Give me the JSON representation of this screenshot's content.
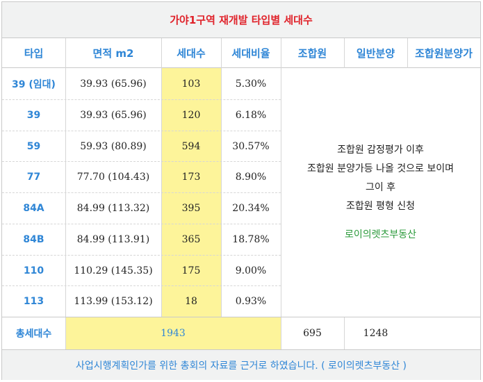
{
  "title": "가야1구역 재개발 타입별 세대수",
  "headers": [
    "타입",
    "면적 m2",
    "세대수",
    "세대비율",
    "조합원",
    "일반분양",
    "조합원분양가"
  ],
  "rows": [
    {
      "type": "39 (임대)",
      "area": "39.93 (65.96)",
      "units": "103",
      "ratio": "5.30%"
    },
    {
      "type": "39",
      "area": "39.93 (65.96)",
      "units": "120",
      "ratio": "6.18%"
    },
    {
      "type": "59",
      "area": "59.93 (80.89)",
      "units": "594",
      "ratio": "30.57%"
    },
    {
      "type": "77",
      "area": "77.70 (104.43)",
      "units": "173",
      "ratio": "8.90%"
    },
    {
      "type": "84A",
      "area": "84.99 (113.32)",
      "units": "395",
      "ratio": "20.34%"
    },
    {
      "type": "84B",
      "area": "84.99 (113.91)",
      "units": "365",
      "ratio": "18.78%"
    },
    {
      "type": "110",
      "area": "110.29 (145.35)",
      "units": "175",
      "ratio": "9.00%"
    },
    {
      "type": "113",
      "area": "113.99 (153.12)",
      "units": "18",
      "ratio": "0.93%"
    }
  ],
  "note": {
    "lines": [
      "조합원 감정평가 이후",
      "조합원 분양가등 나올 것으로 보이며",
      "그이 후",
      "조합원 평형 신청"
    ],
    "agency": "로이의렛츠부동산"
  },
  "total": {
    "label": "총세대수",
    "units": "1943",
    "members": "695",
    "general": "1248"
  },
  "footer": "사업시행계획인가를 위한 총회의 자료를 근거로 하였습니다. ( 로이의렛츠부동산 )",
  "colors": {
    "title": "#e0232b",
    "accent": "#2f86d6",
    "highlight": "#fdf49a",
    "agency": "#2a9a3a"
  }
}
